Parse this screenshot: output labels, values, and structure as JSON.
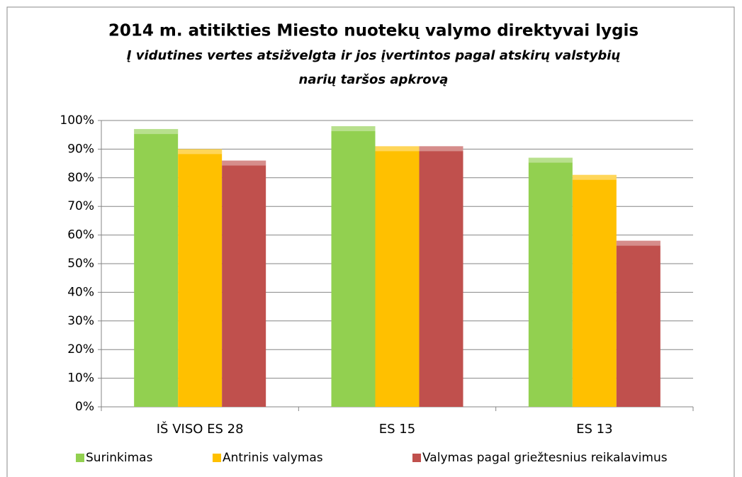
{
  "chart_data": {
    "type": "bar",
    "title": "2014 m. atitikties Miesto nuotekų valymo direktyvai lygis",
    "subtitle": [
      "Į vidutines vertes atsižvelgta ir jos įvertintos pagal atskirų valstybių",
      "narių taršos apkrovą"
    ],
    "categories": [
      "IŠ VISO ES 28",
      "ES 15",
      "ES 13"
    ],
    "series": [
      {
        "name": "Surinkimas",
        "color": "#92d050",
        "values": [
          97,
          98,
          87
        ]
      },
      {
        "name": "Antrinis valymas",
        "color": "#ffc000",
        "values": [
          90,
          91,
          81
        ]
      },
      {
        "name": "Valymas pagal griežtesnius reikalavimus",
        "color": "#c0504d",
        "values": [
          86,
          91,
          58
        ]
      }
    ],
    "ylim": [
      0,
      100
    ],
    "yticks": [
      {
        "value": 0,
        "label": "0%"
      },
      {
        "value": 10,
        "label": "10%"
      },
      {
        "value": 20,
        "label": "20%"
      },
      {
        "value": 30,
        "label": "30%"
      },
      {
        "value": 40,
        "label": "40%"
      },
      {
        "value": 50,
        "label": "50%"
      },
      {
        "value": 60,
        "label": "60%"
      },
      {
        "value": 70,
        "label": "70%"
      },
      {
        "value": 80,
        "label": "80%"
      },
      {
        "value": 90,
        "label": "90%"
      },
      {
        "value": 100,
        "label": "100%"
      }
    ],
    "grid": true,
    "legend": "bottom"
  }
}
